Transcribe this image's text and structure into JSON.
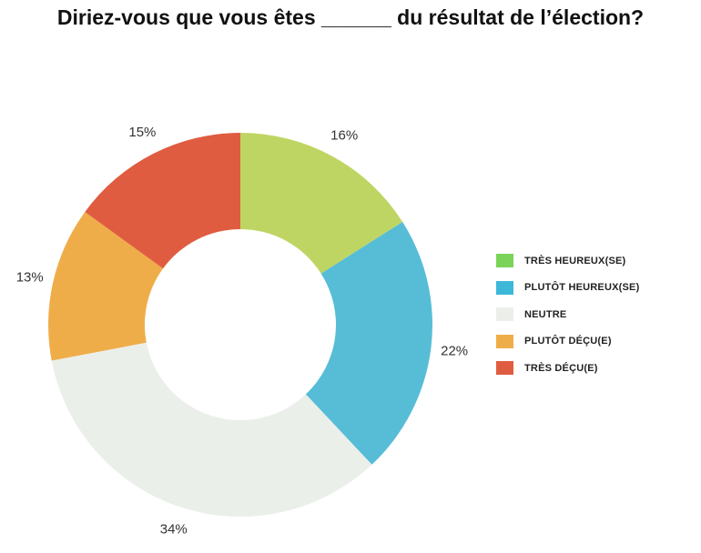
{
  "chart_data": {
    "type": "pie",
    "variant": "donut",
    "title": "Diriez-vous que vous êtes ______ du résultat de l’élection?",
    "categories": [
      "TRÈS HEUREUX(SE)",
      "PLUTÔT HEUREUX(SE)",
      "NEUTRE",
      "PLUTÔT DÉÇU(E)",
      "TRÈS DÉÇU(E)"
    ],
    "values": [
      16,
      22,
      34,
      13,
      15
    ],
    "value_labels": [
      "16%",
      "22%",
      "34%",
      "13%",
      "15%"
    ],
    "slice_colors": [
      "#bfd563",
      "#57bdd7",
      "#ebefe9",
      "#efad4a",
      "#e05c40"
    ],
    "legend_colors": [
      "#7bd35a",
      "#3db8d9",
      "#eceee9",
      "#efad4a",
      "#e05c40"
    ],
    "legend_position": "right"
  }
}
